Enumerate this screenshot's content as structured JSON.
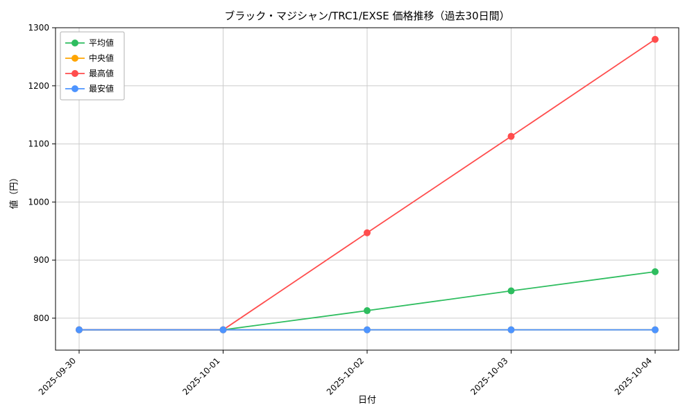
{
  "figure": {
    "title": "ブラック・マジシャン/TRC1/EXSE 価格推移（過去30日間）",
    "xlabel": "日付",
    "ylabel": "値（円）"
  },
  "chart_data": {
    "type": "line",
    "title": "ブラック・マジシャン/TRC1/EXSE 価格推移（過去30日間）",
    "xlabel": "日付",
    "ylabel": "値（円）",
    "categories": [
      "2025-09-30",
      "2025-10-01",
      "2025-10-02",
      "2025-10-03",
      "2025-10-04"
    ],
    "series": [
      {
        "name": "平均値",
        "color": "#2ebd5f",
        "values": [
          780,
          780,
          813,
          847,
          880
        ]
      },
      {
        "name": "中央値",
        "color": "#ffa500",
        "values": [
          780,
          780,
          780,
          780,
          780
        ]
      },
      {
        "name": "最高値",
        "color": "#ff4d4d",
        "values": [
          780,
          780,
          947,
          1113,
          1280
        ]
      },
      {
        "name": "最安値",
        "color": "#4d94ff",
        "values": [
          780,
          780,
          780,
          780,
          780
        ]
      }
    ],
    "yticks": [
      800,
      900,
      1000,
      1100,
      1200,
      1300
    ],
    "ylim": [
      745,
      1300
    ],
    "grid": true,
    "legend_position": "upper left",
    "marker": "circle"
  }
}
